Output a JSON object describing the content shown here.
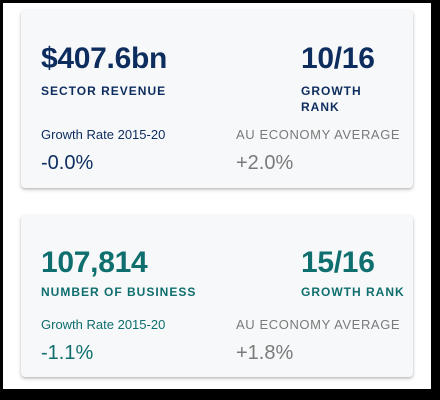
{
  "cards": [
    {
      "main_value": "$407.6bn",
      "main_label": "SECTOR REVENUE",
      "rank_value": "10/16",
      "rank_label": "GROWTH RANK",
      "growth_title": "Growth Rate 2015-20",
      "growth_value": "-0.0%",
      "avg_title": "AU ECONOMY AVERAGE",
      "avg_value": "+2.0%",
      "accent_color": "#0d2d5e"
    },
    {
      "main_value": "107,814",
      "main_label": "NUMBER OF BUSINESS",
      "rank_value": "15/16",
      "rank_label": "GROWTH RANK",
      "growth_title": "Growth Rate 2015-20",
      "growth_value": "-1.1%",
      "avg_title": "AU ECONOMY AVERAGE",
      "avg_value": "+1.8%",
      "accent_color": "#0f6e6e"
    }
  ],
  "colors": {
    "muted_text": "#7a7a7a",
    "card_bg": "#f7f8f9",
    "outer_border": "#000000"
  }
}
